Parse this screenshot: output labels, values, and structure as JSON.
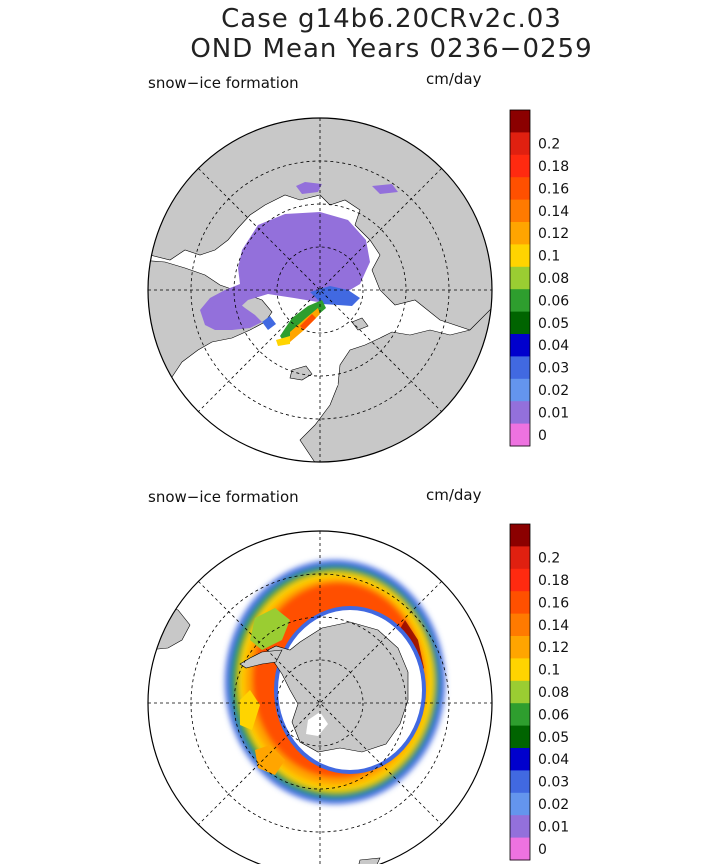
{
  "figure": {
    "title_line1": "Case g14b6.20CRv2c.03",
    "title_line2": "OND Mean    Years 0236−0259"
  },
  "colors": {
    "land": "#c8c8c8",
    "ocean": "#ffffff",
    "grid": "#000000"
  },
  "colorbar": {
    "unit": "cm/day",
    "levels": [
      {
        "label": "",
        "color": "#8b0000"
      },
      {
        "label": "0.2",
        "color": "#e02010"
      },
      {
        "label": "0.18",
        "color": "#ff2a10"
      },
      {
        "label": "0.16",
        "color": "#ff5000"
      },
      {
        "label": "0.14",
        "color": "#ff7a00"
      },
      {
        "label": "0.12",
        "color": "#ffa500"
      },
      {
        "label": "0.1",
        "color": "#ffd400"
      },
      {
        "label": "0.08",
        "color": "#9acd32"
      },
      {
        "label": "0.06",
        "color": "#2e9e2e"
      },
      {
        "label": "0.05",
        "color": "#006400"
      },
      {
        "label": "0.04",
        "color": "#0000cd"
      },
      {
        "label": "0.03",
        "color": "#4169e1"
      },
      {
        "label": "0.02",
        "color": "#6495ed"
      },
      {
        "label": "0.01",
        "color": "#9370db"
      },
      {
        "label": "0",
        "color": "#ee72e0"
      }
    ]
  },
  "panels": [
    {
      "name": "arctic",
      "label": "snow−ice formation",
      "unit": "cm/day",
      "hemisphere": "north"
    },
    {
      "name": "antarctic",
      "label": "snow−ice formation",
      "unit": "cm/day",
      "hemisphere": "south"
    }
  ]
}
